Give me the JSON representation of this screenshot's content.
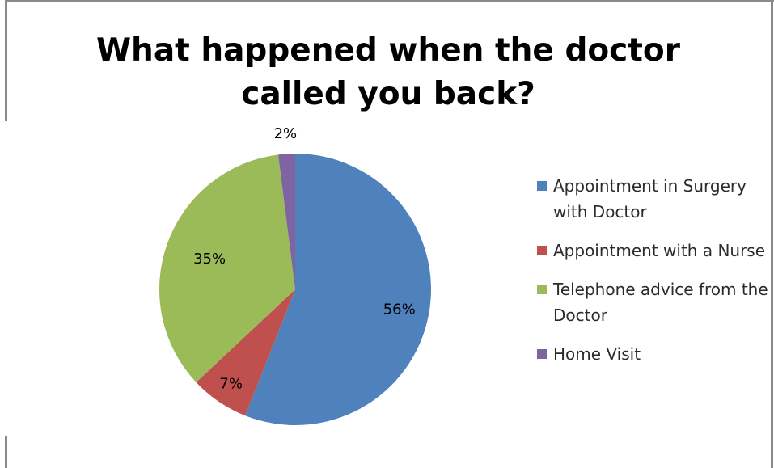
{
  "chart_data": {
    "type": "pie",
    "title": "What happened when the doctor called you back?",
    "categories": [
      "Appointment in Surgery with Doctor",
      "Appointment with a Nurse",
      "Telephone advice from the Doctor",
      "Home Visit"
    ],
    "values": [
      56,
      7,
      35,
      2
    ],
    "labels": [
      "56%",
      "7%",
      "35%",
      "2%"
    ],
    "colors": [
      "#4f81bd",
      "#c0504d",
      "#9bbb59",
      "#8064a2"
    ],
    "legend_position": "right"
  }
}
